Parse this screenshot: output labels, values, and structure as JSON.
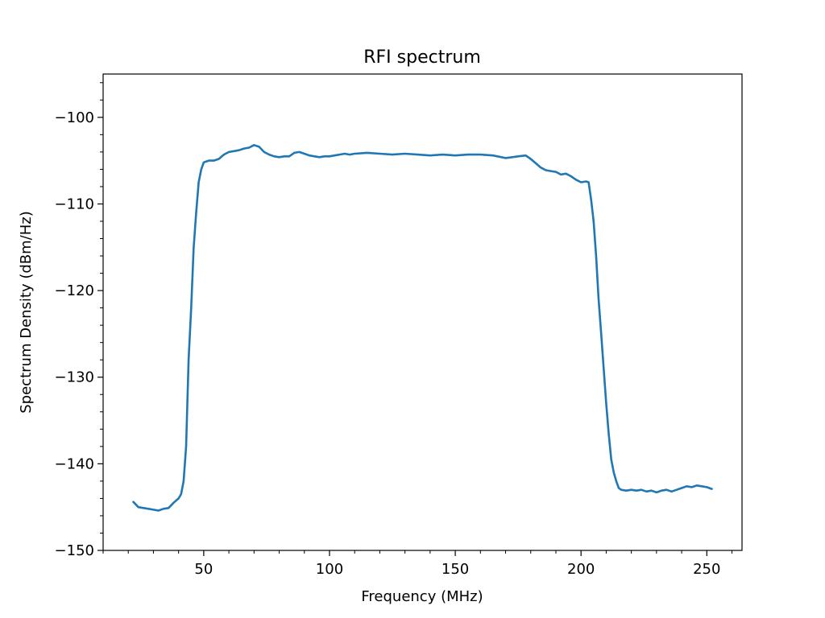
{
  "chart_data": {
    "type": "line",
    "title": "RFI spectrum",
    "xlabel": "Frequency (MHz)",
    "ylabel": "Spectrum Density (dBm/Hz)",
    "xlim": [
      10,
      264
    ],
    "ylim": [
      -150,
      -95
    ],
    "x_ticks": [
      50,
      100,
      150,
      200,
      250
    ],
    "x_tick_labels": [
      "50",
      "100",
      "150",
      "200",
      "250"
    ],
    "y_ticks": [
      -150,
      -140,
      -130,
      -120,
      -110,
      -100
    ],
    "y_tick_labels": [
      "−150",
      "−140",
      "−130",
      "−120",
      "−110",
      "−100"
    ],
    "x_minor_step": 10,
    "y_minor_step": 2,
    "grid": false,
    "series": [
      {
        "color": "#1f77b4",
        "x": [
          22,
          24,
          26,
          28,
          30,
          32,
          34,
          36,
          38,
          40,
          41,
          42,
          43,
          44,
          45,
          46,
          47,
          48,
          49,
          50,
          52,
          54,
          56,
          58,
          60,
          62,
          64,
          66,
          68,
          70,
          72,
          74,
          76,
          78,
          80,
          82,
          84,
          86,
          88,
          90,
          92,
          94,
          96,
          98,
          100,
          102,
          104,
          106,
          108,
          110,
          115,
          120,
          125,
          130,
          135,
          140,
          145,
          150,
          155,
          160,
          165,
          170,
          175,
          178,
          180,
          182,
          184,
          186,
          188,
          190,
          192,
          194,
          196,
          198,
          200,
          202,
          203,
          204,
          205,
          206,
          207,
          208,
          209,
          210,
          211,
          212,
          213,
          214,
          215,
          216,
          218,
          220,
          222,
          224,
          226,
          228,
          230,
          232,
          234,
          236,
          238,
          240,
          242,
          244,
          246,
          248,
          250,
          252
        ],
        "y": [
          -144.4,
          -145.0,
          -145.1,
          -145.2,
          -145.3,
          -145.4,
          -145.2,
          -145.1,
          -144.5,
          -144.0,
          -143.5,
          -142.0,
          -138.0,
          -128.0,
          -122.0,
          -115.0,
          -111.0,
          -107.5,
          -106.0,
          -105.2,
          -105.0,
          -105.0,
          -104.8,
          -104.3,
          -104.0,
          -103.9,
          -103.8,
          -103.6,
          -103.5,
          -103.2,
          -103.4,
          -104.0,
          -104.3,
          -104.5,
          -104.6,
          -104.5,
          -104.5,
          -104.1,
          -104.0,
          -104.2,
          -104.4,
          -104.5,
          -104.6,
          -104.5,
          -104.5,
          -104.4,
          -104.3,
          -104.2,
          -104.3,
          -104.2,
          -104.1,
          -104.2,
          -104.3,
          -104.2,
          -104.3,
          -104.4,
          -104.3,
          -104.4,
          -104.3,
          -104.3,
          -104.4,
          -104.7,
          -104.5,
          -104.4,
          -104.8,
          -105.3,
          -105.8,
          -106.1,
          -106.2,
          -106.3,
          -106.6,
          -106.5,
          -106.8,
          -107.2,
          -107.5,
          -107.4,
          -107.5,
          -109.5,
          -112.0,
          -116.0,
          -121.0,
          -125.0,
          -129.0,
          -133.0,
          -136.5,
          -139.5,
          -141.0,
          -142.0,
          -142.8,
          -143.0,
          -143.1,
          -143.0,
          -143.1,
          -143.0,
          -143.2,
          -143.1,
          -143.3,
          -143.1,
          -143.0,
          -143.2,
          -143.0,
          -142.8,
          -142.6,
          -142.7,
          -142.5,
          -142.6,
          -142.7,
          -142.9
        ]
      }
    ]
  }
}
